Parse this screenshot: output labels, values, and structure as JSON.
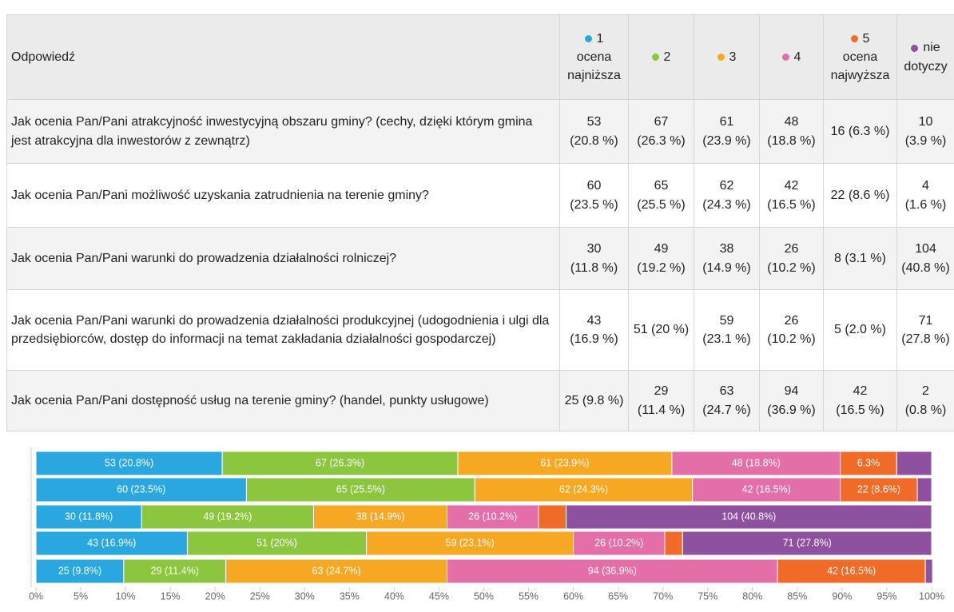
{
  "table": {
    "header": "Odpowiedź",
    "columns": [
      {
        "text": "1",
        "note": "ocena najniższa"
      },
      {
        "text": "2"
      },
      {
        "text": "3"
      },
      {
        "text": "4"
      },
      {
        "text": "5",
        "note": "ocena najwyższa"
      },
      {
        "text": "nie",
        "note": "dotyczy"
      }
    ],
    "rows": [
      {
        "question": "Jak ocenia Pan/Pani atrakcyjność inwestycyjną obszaru gminy? (cechy, dzięki którym gmina jest atrakcyjna dla inwestorów z zewnątrz)",
        "cells": [
          "53 (20.8 %)",
          "67 (26.3 %)",
          "61 (23.9 %)",
          "48 (18.8 %)",
          "16 (6.3 %)",
          "10 (3.9 %)"
        ]
      },
      {
        "question": "Jak ocenia Pan/Pani możliwość uzyskania zatrudnienia na terenie gminy?",
        "cells": [
          "60 (23.5 %)",
          "65 (25.5 %)",
          "62 (24.3 %)",
          "42 (16.5 %)",
          "22 (8.6 %)",
          "4 (1.6 %)"
        ]
      },
      {
        "question": "Jak ocenia Pan/Pani warunki do prowadzenia działalności rolniczej?",
        "cells": [
          "30 (11.8 %)",
          "49 (19.2 %)",
          "38 (14.9 %)",
          "26 (10.2 %)",
          "8 (3.1 %)",
          "104 (40.8 %)"
        ]
      },
      {
        "question": "Jak ocenia Pan/Pani warunki do prowadzenia działalności produkcyjnej (udogodnienia i ulgi dla przedsiębiorców, dostęp do informacji na temat zakładania działalności gospodarczej)",
        "cells": [
          "43 (16.9 %)",
          "51 (20 %)",
          "59 (23.1 %)",
          "26 (10.2 %)",
          "5 (2.0 %)",
          "71 (27.8 %)"
        ]
      },
      {
        "question": "Jak ocenia Pan/Pani dostępność usług na terenie gminy? (handel, punkty usługowe)",
        "cells": [
          "25 (9.8 %)",
          "29 (11.4 %)",
          "63 (24.7 %)",
          "94 (36.9 %)",
          "42 (16.5 %)",
          "2 (0.8 %)"
        ]
      }
    ]
  },
  "chart_data": {
    "type": "stacked_bar_horizontal",
    "categories": [
      null,
      null,
      null,
      null,
      null
    ],
    "series": [
      {
        "color": "#29a8e0",
        "values": [
          20.8,
          23.5,
          11.8,
          16.9,
          9.8
        ],
        "value_labels": [
          "53 (20.8%)",
          "60 (23.5%)",
          "30 (11.8%)",
          "43 (16.9%)",
          "25 (9.8%)"
        ]
      },
      {
        "color": "#8cc63f",
        "values": [
          26.3,
          25.5,
          19.2,
          20,
          11.4
        ],
        "value_labels": [
          "67 (26.3%)",
          "65 (25.5%)",
          "49 (19.2%)",
          "51 (20%)",
          "29 (11.4%)"
        ]
      },
      {
        "color": "#f7a823",
        "values": [
          23.9,
          24.3,
          14.9,
          23.1,
          24.7
        ],
        "value_labels": [
          "61 (23.9%)",
          "62 (24.3%)",
          "38 (14.9%)",
          "59 (23.1%)",
          "63 (24.7%)"
        ]
      },
      {
        "color": "#e46fa8",
        "values": [
          18.8,
          16.5,
          10.2,
          10.2,
          36.9
        ],
        "value_labels": [
          "48 (18.8%)",
          "42 (16.5%)",
          "26 (10.2%)",
          "26 (10.2%)",
          "94 (36.9%)"
        ]
      },
      {
        "color": "#f06a28",
        "values": [
          6.3,
          8.6,
          3.1,
          2.0,
          16.5
        ],
        "value_labels": [
          "6.3%",
          "22 (8.6%)",
          null,
          null,
          "42 (16.5%)"
        ]
      },
      {
        "color": "#8e51a0",
        "values": [
          3.9,
          1.6,
          40.8,
          27.8,
          0.8
        ],
        "value_labels": [
          null,
          null,
          "104 (40.8%)",
          "71 (27.8%)",
          null
        ]
      }
    ],
    "xlim": [
      0,
      100
    ],
    "xticks": [
      {
        "value": 0,
        "label": "0%"
      },
      {
        "value": 5,
        "label": "5%"
      },
      {
        "value": 10,
        "label": "10%"
      },
      {
        "value": 15,
        "label": "15%"
      },
      {
        "value": 20,
        "label": "20%"
      },
      {
        "value": 25,
        "label": "25%"
      },
      {
        "value": 30,
        "label": "30%"
      },
      {
        "value": 35,
        "label": "35%"
      },
      {
        "value": 40,
        "label": "40%"
      },
      {
        "value": 45,
        "label": "45%"
      },
      {
        "value": 50,
        "label": "50%"
      },
      {
        "value": 55,
        "label": "55%"
      },
      {
        "value": 60,
        "label": "60%"
      },
      {
        "value": 65,
        "label": "65%"
      },
      {
        "value": 70,
        "label": "70%"
      },
      {
        "value": 75,
        "label": "75%"
      },
      {
        "value": 80,
        "label": "80%"
      },
      {
        "value": 85,
        "label": "85%"
      },
      {
        "value": 90,
        "label": "90%"
      },
      {
        "value": 95,
        "label": "95%"
      },
      {
        "value": 100,
        "label": "100%"
      }
    ]
  }
}
